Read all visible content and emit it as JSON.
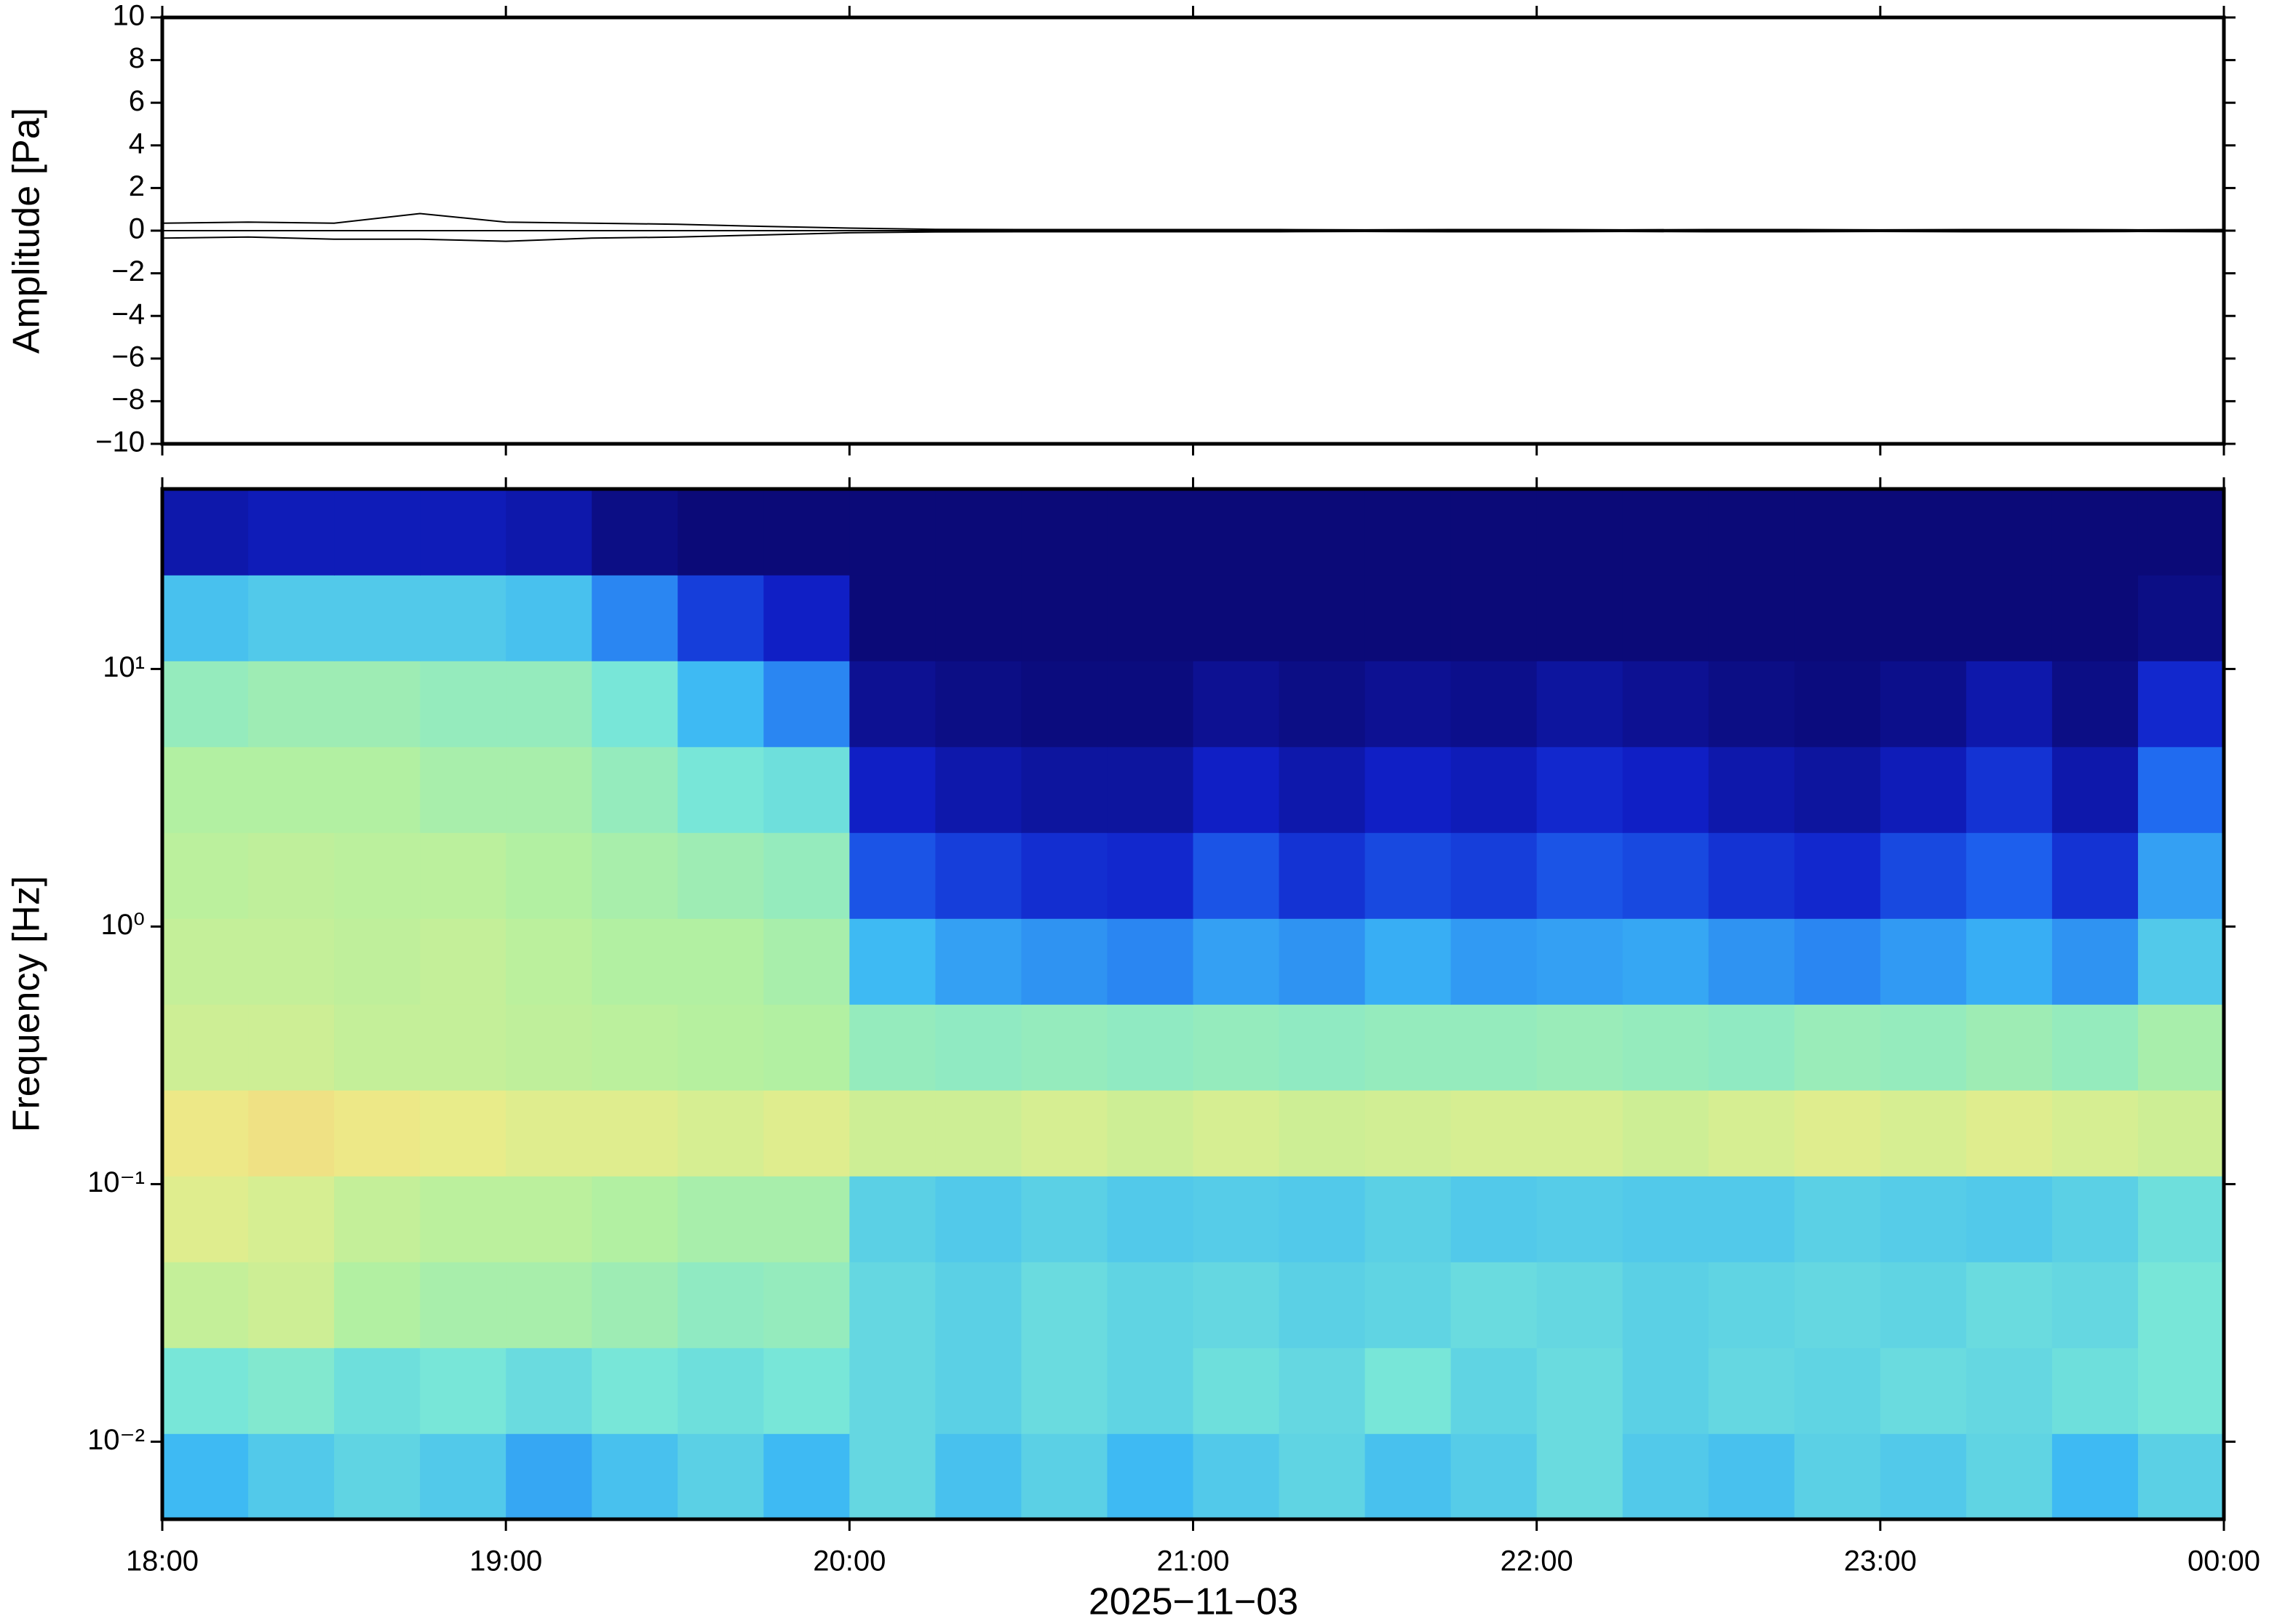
{
  "chart_data": [
    {
      "type": "line",
      "ylabel": "Amplitude [Pa]",
      "xlim": [
        18,
        24
      ],
      "xticks": [
        18,
        19,
        20,
        21,
        22,
        23,
        24
      ],
      "ylim": [
        -10,
        10
      ],
      "yticks": [
        {
          "value": -10,
          "label": "−10"
        },
        {
          "value": -8,
          "label": "−8"
        },
        {
          "value": -6,
          "label": "−6"
        },
        {
          "value": -4,
          "label": "−4"
        },
        {
          "value": -2,
          "label": "−2"
        },
        0,
        2,
        4,
        6,
        8,
        10
      ],
      "x": [
        18,
        18.25,
        18.5,
        18.75,
        19,
        19.25,
        19.5,
        19.75,
        20,
        20.25,
        20.5,
        20.75,
        21,
        21.25,
        21.5,
        21.75,
        22,
        22.25,
        22.5,
        22.75,
        23,
        23.25,
        23.5,
        23.75,
        24
      ],
      "series": [
        {
          "color": "#000000",
          "values": [
            0.35,
            0.4,
            0.35,
            0.8,
            0.4,
            0.35,
            0.3,
            0.2,
            0.12,
            0.06,
            0.05,
            0.05,
            0.05,
            0.05,
            0.04,
            0.05,
            0.05,
            0.04,
            0.05,
            0.05,
            0.04,
            0.05,
            0.05,
            0.04,
            0.05
          ]
        },
        {
          "color": "#000000",
          "values": [
            -0.35,
            -0.3,
            -0.4,
            -0.4,
            -0.5,
            -0.35,
            -0.3,
            -0.2,
            -0.1,
            -0.06,
            -0.05,
            -0.05,
            -0.05,
            -0.05,
            -0.04,
            -0.05,
            -0.05,
            -0.04,
            -0.05,
            -0.05,
            -0.04,
            -0.05,
            -0.05,
            -0.04,
            -0.05
          ]
        }
      ]
    },
    {
      "type": "heatmap",
      "ylabel": "Frequency [Hz]",
      "xlabel": "2025−11−03",
      "xlim": [
        18,
        24
      ],
      "xticks": [
        {
          "value": 18,
          "label": "18:00"
        },
        {
          "value": 19,
          "label": "19:00"
        },
        {
          "value": 20,
          "label": "20:00"
        },
        {
          "value": 21,
          "label": "21:00"
        },
        {
          "value": 22,
          "label": "22:00"
        },
        {
          "value": 23,
          "label": "23:00"
        },
        {
          "value": 24,
          "label": "00:00"
        }
      ],
      "ylog": true,
      "ylim": [
        0.005,
        50
      ],
      "yticks": [
        {
          "value": 0.01,
          "label": "10⁻²"
        },
        {
          "value": 0.1,
          "label": "10⁻¹"
        },
        {
          "value": 1,
          "label": "10⁰"
        },
        {
          "value": 10,
          "label": "10¹"
        }
      ],
      "colormap": [
        "#0b0a78",
        "#1020c8",
        "#1e64f0",
        "#3cb8f4",
        "#78e6d8",
        "#b4f0a0",
        "#ecec88",
        "#f8c078",
        "#f07058"
      ],
      "intensity": [
        [
          0.38,
          0.42,
          0.45,
          0.42,
          0.35,
          0.4,
          0.44,
          0.38,
          0.46,
          0.4,
          0.44,
          0.38,
          0.42,
          0.45,
          0.4,
          0.43,
          0.47,
          0.42,
          0.4,
          0.44,
          0.42,
          0.45,
          0.38,
          0.44
        ],
        [
          0.5,
          0.52,
          0.48,
          0.5,
          0.47,
          0.5,
          0.48,
          0.5,
          0.46,
          0.44,
          0.47,
          0.45,
          0.48,
          0.46,
          0.5,
          0.45,
          0.47,
          0.44,
          0.46,
          0.45,
          0.47,
          0.46,
          0.48,
          0.5
        ],
        [
          0.66,
          0.68,
          0.62,
          0.6,
          0.6,
          0.58,
          0.55,
          0.56,
          0.46,
          0.44,
          0.47,
          0.45,
          0.46,
          0.44,
          0.45,
          0.47,
          0.46,
          0.44,
          0.45,
          0.46,
          0.45,
          0.47,
          0.46,
          0.5
        ],
        [
          0.72,
          0.7,
          0.66,
          0.64,
          0.64,
          0.62,
          0.6,
          0.6,
          0.44,
          0.42,
          0.44,
          0.42,
          0.43,
          0.42,
          0.44,
          0.42,
          0.43,
          0.42,
          0.42,
          0.44,
          0.43,
          0.42,
          0.44,
          0.48
        ],
        [
          0.76,
          0.78,
          0.76,
          0.74,
          0.72,
          0.72,
          0.7,
          0.72,
          0.68,
          0.68,
          0.7,
          0.68,
          0.7,
          0.68,
          0.69,
          0.7,
          0.7,
          0.68,
          0.7,
          0.72,
          0.7,
          0.72,
          0.7,
          0.68
        ],
        [
          0.68,
          0.68,
          0.66,
          0.66,
          0.65,
          0.64,
          0.63,
          0.62,
          0.56,
          0.55,
          0.56,
          0.55,
          0.56,
          0.55,
          0.56,
          0.56,
          0.57,
          0.56,
          0.55,
          0.57,
          0.56,
          0.58,
          0.56,
          0.6
        ],
        [
          0.66,
          0.66,
          0.65,
          0.66,
          0.64,
          0.62,
          0.62,
          0.6,
          0.38,
          0.34,
          0.32,
          0.3,
          0.34,
          0.32,
          0.36,
          0.33,
          0.34,
          0.35,
          0.32,
          0.3,
          0.33,
          0.36,
          0.32,
          0.42
        ],
        [
          0.64,
          0.65,
          0.64,
          0.64,
          0.62,
          0.6,
          0.58,
          0.56,
          0.22,
          0.18,
          0.15,
          0.14,
          0.22,
          0.16,
          0.2,
          0.18,
          0.22,
          0.2,
          0.16,
          0.14,
          0.2,
          0.24,
          0.16,
          0.34
        ],
        [
          0.62,
          0.62,
          0.62,
          0.6,
          0.6,
          0.56,
          0.5,
          0.48,
          0.12,
          0.08,
          0.06,
          0.06,
          0.12,
          0.08,
          0.12,
          0.1,
          0.14,
          0.12,
          0.08,
          0.06,
          0.1,
          0.16,
          0.08,
          0.26
        ],
        [
          0.56,
          0.58,
          0.58,
          0.56,
          0.56,
          0.5,
          0.38,
          0.3,
          0.04,
          0.02,
          0.01,
          0.01,
          0.04,
          0.02,
          0.04,
          0.03,
          0.06,
          0.04,
          0.02,
          0.01,
          0.03,
          0.08,
          0.02,
          0.14
        ],
        [
          0.4,
          0.42,
          0.42,
          0.42,
          0.4,
          0.3,
          0.18,
          0.12,
          0,
          0,
          0,
          0,
          0,
          0,
          0,
          0,
          0,
          0,
          0,
          0,
          0,
          0,
          0,
          0.02
        ],
        [
          0.08,
          0.1,
          0.1,
          0.1,
          0.08,
          0.02,
          0,
          0,
          0,
          0,
          0,
          0,
          0,
          0,
          0,
          0,
          0,
          0,
          0,
          0,
          0,
          0,
          0,
          0
        ]
      ]
    }
  ]
}
